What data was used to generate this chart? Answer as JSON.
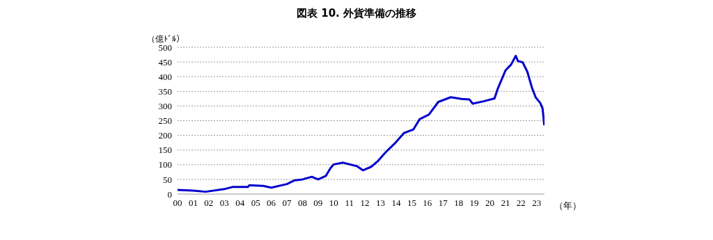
{
  "chart_data": {
    "type": "line",
    "title": "図表 10. 外貨準備の推移",
    "ylabel": "（億ﾄﾞﾙ）",
    "xlabel": "（年）",
    "x": [
      2000,
      2001,
      2001.8,
      2003,
      2003.5,
      2004.5,
      2004.6,
      2005.5,
      2006,
      2007,
      2007.5,
      2008,
      2008.6,
      2009,
      2009.5,
      2009.8,
      2010,
      2010.6,
      2011.5,
      2011.87,
      2012.4,
      2012.84,
      2013.3,
      2013.9,
      2014.5,
      2015.1,
      2015.5,
      2016.1,
      2016.7,
      2017.5,
      2018.2,
      2018.7,
      2018.9,
      2019.6,
      2020.3,
      2020.5,
      2021,
      2021.36,
      2021.66,
      2021.8,
      2022.1,
      2022.4,
      2022.7,
      2022.93,
      2023.23,
      2023.38,
      2023.48
    ],
    "series": [
      {
        "color": "#0000cd",
        "values": [
          14,
          12,
          8,
          17,
          24,
          24,
          30,
          28,
          22,
          34,
          47,
          50,
          59,
          50,
          62,
          89,
          101,
          107,
          95,
          81,
          93,
          113,
          141,
          172,
          208,
          220,
          255,
          271,
          314,
          330,
          324,
          322,
          308,
          316,
          326,
          358,
          421,
          441,
          471,
          453,
          449,
          417,
          362,
          330,
          310,
          291,
          237
        ]
      }
    ],
    "xlim": [
      2000,
      2023.5
    ],
    "xticks": [
      {
        "value": 2000,
        "label": "00"
      },
      {
        "value": 2001,
        "label": "01"
      },
      {
        "value": 2002,
        "label": "02"
      },
      {
        "value": 2003,
        "label": "03"
      },
      {
        "value": 2004,
        "label": "04"
      },
      {
        "value": 2005,
        "label": "05"
      },
      {
        "value": 2006,
        "label": "06"
      },
      {
        "value": 2007,
        "label": "07"
      },
      {
        "value": 2008,
        "label": "08"
      },
      {
        "value": 2009,
        "label": "09"
      },
      {
        "value": 2010,
        "label": "10"
      },
      {
        "value": 2011,
        "label": "11"
      },
      {
        "value": 2012,
        "label": "12"
      },
      {
        "value": 2013,
        "label": "13"
      },
      {
        "value": 2014,
        "label": "14"
      },
      {
        "value": 2015,
        "label": "15"
      },
      {
        "value": 2016,
        "label": "16"
      },
      {
        "value": 2017,
        "label": "17"
      },
      {
        "value": 2018,
        "label": "18"
      },
      {
        "value": 2019,
        "label": "19"
      },
      {
        "value": 2020,
        "label": "20"
      },
      {
        "value": 2021,
        "label": "21"
      },
      {
        "value": 2022,
        "label": "22"
      },
      {
        "value": 2023,
        "label": "23"
      }
    ],
    "ylim": [
      0,
      500
    ],
    "yticks": [
      0,
      50,
      100,
      150,
      200,
      250,
      300,
      350,
      400,
      450,
      500
    ],
    "grid": "y",
    "legend": false,
    "marker": "none",
    "line_style": "solid"
  }
}
